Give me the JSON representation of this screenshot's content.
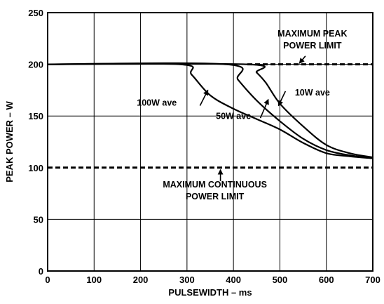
{
  "chart_data": {
    "type": "line",
    "title": "",
    "xlabel": "PULSEWIDTH – ms",
    "ylabel": "PEAK POWER – W",
    "xlim": [
      0,
      700
    ],
    "ylim": [
      0,
      250
    ],
    "xticks": [
      "0",
      "100",
      "200",
      "300",
      "400",
      "500",
      "600",
      "700"
    ],
    "yticks": [
      "0",
      "50",
      "100",
      "150",
      "200",
      "250"
    ],
    "grid": true,
    "colors": {
      "lines": "#000000",
      "background": "#ffffff",
      "grid": "#000000"
    },
    "series": [
      {
        "name": "100W ave",
        "points": [
          [
            0,
            200
          ],
          [
            285,
            200
          ],
          [
            310,
            190
          ],
          [
            350,
            170
          ],
          [
            400,
            157
          ],
          [
            450,
            147
          ],
          [
            500,
            137
          ],
          [
            550,
            124
          ],
          [
            600,
            114
          ],
          [
            650,
            111
          ],
          [
            700,
            109
          ]
        ]
      },
      {
        "name": "50W ave",
        "points": [
          [
            0,
            200
          ],
          [
            385,
            200
          ],
          [
            410,
            185
          ],
          [
            450,
            165
          ],
          [
            500,
            145
          ],
          [
            550,
            128
          ],
          [
            600,
            117
          ],
          [
            650,
            112
          ],
          [
            700,
            109
          ]
        ]
      },
      {
        "name": "10W ave",
        "points": [
          [
            0,
            200
          ],
          [
            430,
            200
          ],
          [
            450,
            192
          ],
          [
            470,
            182
          ],
          [
            500,
            162
          ],
          [
            550,
            140
          ],
          [
            600,
            122
          ],
          [
            650,
            114
          ],
          [
            700,
            110
          ]
        ]
      }
    ],
    "limits": [
      {
        "name": "MAXIMUM PEAK POWER LIMIT",
        "y": 200,
        "x_start": 430,
        "x_end": 700,
        "style": "dashed"
      },
      {
        "name": "MAXIMUM CONTINUOUS POWER LIMIT",
        "y": 100,
        "x_start": 0,
        "x_end": 700,
        "style": "dashed"
      }
    ],
    "annotations": [
      {
        "lines": [
          "100W ave"
        ],
        "text_at": [
          235,
          160
        ],
        "arrow_tail": [
          328,
          160
        ],
        "arrow_head": [
          345,
          175
        ]
      },
      {
        "lines": [
          "50W ave"
        ],
        "text_at": [
          400,
          147
        ],
        "arrow_tail": [
          458,
          148
        ],
        "arrow_head": [
          475,
          166
        ]
      },
      {
        "lines": [
          "10W ave"
        ],
        "text_at": [
          570,
          170
        ],
        "arrow_tail": [
          512,
          174
        ],
        "arrow_head": [
          497,
          160
        ]
      },
      {
        "lines": [
          "MAXIMUM PEAK",
          "POWER LIMIT"
        ],
        "text_at": [
          570,
          227
        ],
        "arrow_tail": [
          555,
          208
        ],
        "arrow_head": [
          542,
          201
        ]
      },
      {
        "lines": [
          "MAXIMUM CONTINUOUS",
          "POWER LIMIT"
        ],
        "text_at": [
          360,
          81
        ],
        "arrow_tail": [
          372,
          87
        ],
        "arrow_head": [
          372,
          98
        ]
      }
    ]
  }
}
